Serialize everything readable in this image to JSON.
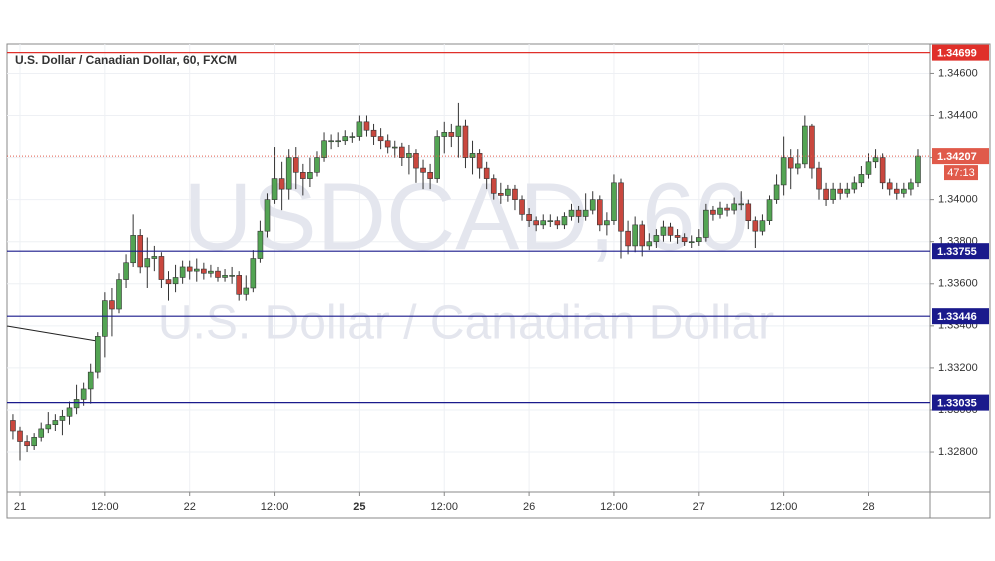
{
  "chart_data": {
    "type": "candlestick",
    "title": "U.S. Dollar / Canadian Dollar, 60, FXCM",
    "watermark": "USDCAD, 60",
    "watermark_subtitle": "U.S. Dollar / Canadian Dollar",
    "up_color": "#53a453",
    "down_color": "#c9473e",
    "x": [
      -1,
      0,
      1,
      2,
      3,
      4,
      5,
      6,
      7,
      8,
      9,
      10,
      11,
      12,
      13,
      14,
      15,
      16,
      17,
      18,
      19,
      20,
      21,
      22,
      23,
      24,
      25,
      26,
      27,
      28,
      29,
      30,
      31,
      32,
      33,
      34,
      35,
      36,
      37,
      38,
      39,
      40,
      41,
      42,
      43,
      44,
      45,
      46,
      47,
      48,
      49,
      50,
      51,
      52,
      53,
      54,
      55,
      56,
      57,
      58,
      59,
      60,
      61,
      62,
      63,
      64,
      65,
      66,
      67,
      68,
      69,
      70,
      71,
      72,
      73,
      74,
      75,
      76,
      77,
      78,
      79,
      80,
      81,
      82,
      83,
      84,
      85,
      86,
      87,
      88,
      89,
      90,
      91,
      92,
      93,
      94,
      95,
      96,
      97,
      98,
      99,
      100,
      101,
      102,
      103,
      104,
      105,
      106,
      107,
      108,
      109,
      110,
      111,
      112,
      113,
      114,
      115,
      116,
      117,
      118,
      119,
      120,
      121,
      122,
      123,
      124,
      125,
      126,
      127
    ],
    "open": [
      1.3295,
      1.329,
      1.3285,
      1.3283,
      1.3287,
      1.3291,
      1.3293,
      1.3295,
      1.3297,
      1.3301,
      1.3305,
      1.331,
      1.3318,
      1.3335,
      1.3352,
      1.3348,
      1.3362,
      1.337,
      1.3383,
      1.3368,
      1.3372,
      1.3373,
      1.3362,
      1.336,
      1.3363,
      1.3368,
      1.3366,
      1.3367,
      1.3365,
      1.3366,
      1.3363,
      1.3364,
      1.3364,
      1.3355,
      1.3358,
      1.3372,
      1.3385,
      1.34,
      1.341,
      1.3405,
      1.342,
      1.3413,
      1.341,
      1.3413,
      1.342,
      1.3428,
      1.3428,
      1.3428,
      1.343,
      1.343,
      1.3437,
      1.3433,
      1.343,
      1.3428,
      1.3425,
      1.3425,
      1.342,
      1.3422,
      1.3415,
      1.3413,
      1.341,
      1.343,
      1.3432,
      1.343,
      1.3435,
      1.342,
      1.3422,
      1.3415,
      1.341,
      1.3403,
      1.3402,
      1.3405,
      1.34,
      1.3393,
      1.339,
      1.3388,
      1.339,
      1.339,
      1.3388,
      1.3392,
      1.3395,
      1.3392,
      1.3395,
      1.34,
      1.3388,
      1.339,
      1.3408,
      1.3385,
      1.3378,
      1.3388,
      1.3378,
      1.338,
      1.3383,
      1.3387,
      1.3383,
      1.3382,
      1.338,
      1.338,
      1.3382,
      1.3395,
      1.3393,
      1.3396,
      1.3395,
      1.3398,
      1.3398,
      1.339,
      1.3385,
      1.339,
      1.34,
      1.3407,
      1.342,
      1.3415,
      1.3417,
      1.3435,
      1.3415,
      1.3405,
      1.34,
      1.3405,
      1.3403,
      1.3405,
      1.3408,
      1.3412,
      1.3418,
      1.342,
      1.3408,
      1.3405,
      1.3403,
      1.3405,
      1.3408
    ],
    "high": [
      1.3298,
      1.3292,
      1.3288,
      1.3289,
      1.3294,
      1.3299,
      1.3298,
      1.33,
      1.3304,
      1.3312,
      1.3313,
      1.3322,
      1.3337,
      1.3356,
      1.3358,
      1.3365,
      1.3374,
      1.3393,
      1.3386,
      1.3382,
      1.3378,
      1.3375,
      1.3366,
      1.3369,
      1.3371,
      1.3371,
      1.3372,
      1.337,
      1.3369,
      1.3368,
      1.3367,
      1.3368,
      1.3366,
      1.3364,
      1.3376,
      1.339,
      1.3403,
      1.3425,
      1.3418,
      1.3424,
      1.3425,
      1.3417,
      1.342,
      1.3423,
      1.3432,
      1.3431,
      1.3432,
      1.3433,
      1.3432,
      1.344,
      1.344,
      1.3436,
      1.3434,
      1.3431,
      1.3428,
      1.3427,
      1.3426,
      1.3424,
      1.3419,
      1.3417,
      1.3433,
      1.3437,
      1.3436,
      1.3446,
      1.3438,
      1.3428,
      1.3424,
      1.3418,
      1.3412,
      1.3408,
      1.3407,
      1.3407,
      1.3402,
      1.3396,
      1.3392,
      1.3393,
      1.3393,
      1.3392,
      1.3394,
      1.3398,
      1.3397,
      1.3403,
      1.3404,
      1.3402,
      1.3394,
      1.3412,
      1.341,
      1.339,
      1.3392,
      1.339,
      1.3384,
      1.3386,
      1.339,
      1.3389,
      1.3386,
      1.3384,
      1.3383,
      1.3386,
      1.3398,
      1.3397,
      1.3399,
      1.3398,
      1.3401,
      1.3404,
      1.34,
      1.3392,
      1.3393,
      1.3402,
      1.3412,
      1.343,
      1.3424,
      1.3424,
      1.344,
      1.3436,
      1.3418,
      1.3408,
      1.3408,
      1.3408,
      1.3408,
      1.3411,
      1.3416,
      1.3422,
      1.3424,
      1.3422,
      1.341,
      1.3408,
      1.3408,
      1.341,
      1.3424
    ],
    "low": [
      1.3286,
      1.3276,
      1.328,
      1.3281,
      1.3285,
      1.3289,
      1.329,
      1.3288,
      1.3293,
      1.3298,
      1.3302,
      1.3303,
      1.3315,
      1.3325,
      1.3335,
      1.3346,
      1.3358,
      1.3368,
      1.3365,
      1.3358,
      1.3366,
      1.3358,
      1.3352,
      1.3356,
      1.336,
      1.3362,
      1.3361,
      1.3362,
      1.3363,
      1.3361,
      1.3361,
      1.336,
      1.3352,
      1.3352,
      1.3356,
      1.337,
      1.3382,
      1.3398,
      1.3395,
      1.34,
      1.3405,
      1.3402,
      1.3406,
      1.3411,
      1.3418,
      1.3424,
      1.3425,
      1.3426,
      1.3427,
      1.3428,
      1.343,
      1.3426,
      1.3424,
      1.3422,
      1.342,
      1.3416,
      1.3412,
      1.3408,
      1.3405,
      1.3405,
      1.3408,
      1.3422,
      1.3425,
      1.342,
      1.3415,
      1.3412,
      1.341,
      1.3405,
      1.34,
      1.3398,
      1.3399,
      1.3395,
      1.339,
      1.3387,
      1.3385,
      1.3386,
      1.3387,
      1.3386,
      1.3386,
      1.339,
      1.3389,
      1.339,
      1.3393,
      1.3385,
      1.3383,
      1.3388,
      1.3372,
      1.3374,
      1.3375,
      1.3373,
      1.3376,
      1.3377,
      1.338,
      1.338,
      1.3379,
      1.3378,
      1.3377,
      1.3378,
      1.338,
      1.339,
      1.3391,
      1.3392,
      1.3393,
      1.3395,
      1.3386,
      1.3377,
      1.3383,
      1.3388,
      1.3398,
      1.3402,
      1.3405,
      1.3412,
      1.3415,
      1.341,
      1.34,
      1.3397,
      1.3398,
      1.34,
      1.3401,
      1.3403,
      1.3406,
      1.341,
      1.3415,
      1.3405,
      1.3402,
      1.34,
      1.3401,
      1.3402,
      1.3406
    ],
    "close": [
      1.329,
      1.3285,
      1.3283,
      1.3287,
      1.3291,
      1.3293,
      1.3295,
      1.3297,
      1.3301,
      1.3305,
      1.331,
      1.3318,
      1.3335,
      1.3352,
      1.3348,
      1.3362,
      1.337,
      1.3383,
      1.3368,
      1.3372,
      1.3373,
      1.3362,
      1.336,
      1.3363,
      1.3368,
      1.3366,
      1.3367,
      1.3365,
      1.3366,
      1.3363,
      1.3364,
      1.3364,
      1.3355,
      1.3358,
      1.3372,
      1.3385,
      1.34,
      1.341,
      1.3405,
      1.342,
      1.3413,
      1.341,
      1.3413,
      1.342,
      1.3428,
      1.3428,
      1.3428,
      1.343,
      1.343,
      1.3437,
      1.3433,
      1.343,
      1.3428,
      1.3425,
      1.3425,
      1.342,
      1.3422,
      1.3415,
      1.3413,
      1.341,
      1.343,
      1.3432,
      1.343,
      1.3435,
      1.342,
      1.3422,
      1.3415,
      1.341,
      1.3403,
      1.3402,
      1.3405,
      1.34,
      1.3393,
      1.339,
      1.3388,
      1.339,
      1.339,
      1.3388,
      1.3392,
      1.3395,
      1.3392,
      1.3395,
      1.34,
      1.3388,
      1.339,
      1.3408,
      1.3385,
      1.3378,
      1.3388,
      1.3378,
      1.338,
      1.3383,
      1.3387,
      1.3383,
      1.3382,
      1.338,
      1.338,
      1.3382,
      1.3395,
      1.3393,
      1.3396,
      1.3395,
      1.3398,
      1.3398,
      1.339,
      1.3385,
      1.339,
      1.34,
      1.3407,
      1.342,
      1.3415,
      1.3417,
      1.3435,
      1.3415,
      1.3405,
      1.34,
      1.3405,
      1.3403,
      1.3405,
      1.3408,
      1.3412,
      1.3418,
      1.342,
      1.3408,
      1.3405,
      1.3403,
      1.3405,
      1.3408,
      1.34207
    ],
    "xlim": [
      -1.84,
      128.7
    ],
    "ylim": [
      1.3261,
      1.3474
    ],
    "xticks": [
      {
        "value": 0,
        "label": "21"
      },
      {
        "value": 12,
        "label": "12:00"
      },
      {
        "value": 24,
        "label": "22"
      },
      {
        "value": 36,
        "label": "12:00"
      },
      {
        "value": 48,
        "label": "25"
      },
      {
        "value": 60,
        "label": "12:00"
      },
      {
        "value": 72,
        "label": "26"
      },
      {
        "value": 84,
        "label": "12:00"
      },
      {
        "value": 96,
        "label": "27"
      },
      {
        "value": 108,
        "label": "12:00"
      },
      {
        "value": 120,
        "label": "28"
      }
    ],
    "yticks": [
      {
        "value": 1.328,
        "label": "1.32800"
      },
      {
        "value": 1.33,
        "label": "1.33000"
      },
      {
        "value": 1.332,
        "label": "1.33200"
      },
      {
        "value": 1.334,
        "label": "1.33400"
      },
      {
        "value": 1.336,
        "label": "1.33600"
      },
      {
        "value": 1.338,
        "label": "1.33800"
      },
      {
        "value": 1.34,
        "label": "1.34000"
      },
      {
        "value": 1.342,
        "label": "1.34200"
      },
      {
        "value": 1.344,
        "label": "1.34400"
      },
      {
        "value": 1.346,
        "label": "1.34600"
      }
    ],
    "grid": true,
    "levels": [
      {
        "value": 1.34699,
        "color": "#e0302a"
      },
      {
        "value": 1.33755,
        "color": "#1a1a8c"
      },
      {
        "value": 1.33446,
        "color": "#1a1a8c"
      },
      {
        "value": 1.33035,
        "color": "#1a1a8c"
      }
    ],
    "last_price": 1.34207,
    "last_price_color": "#e05a4a",
    "countdown": "47:13"
  }
}
